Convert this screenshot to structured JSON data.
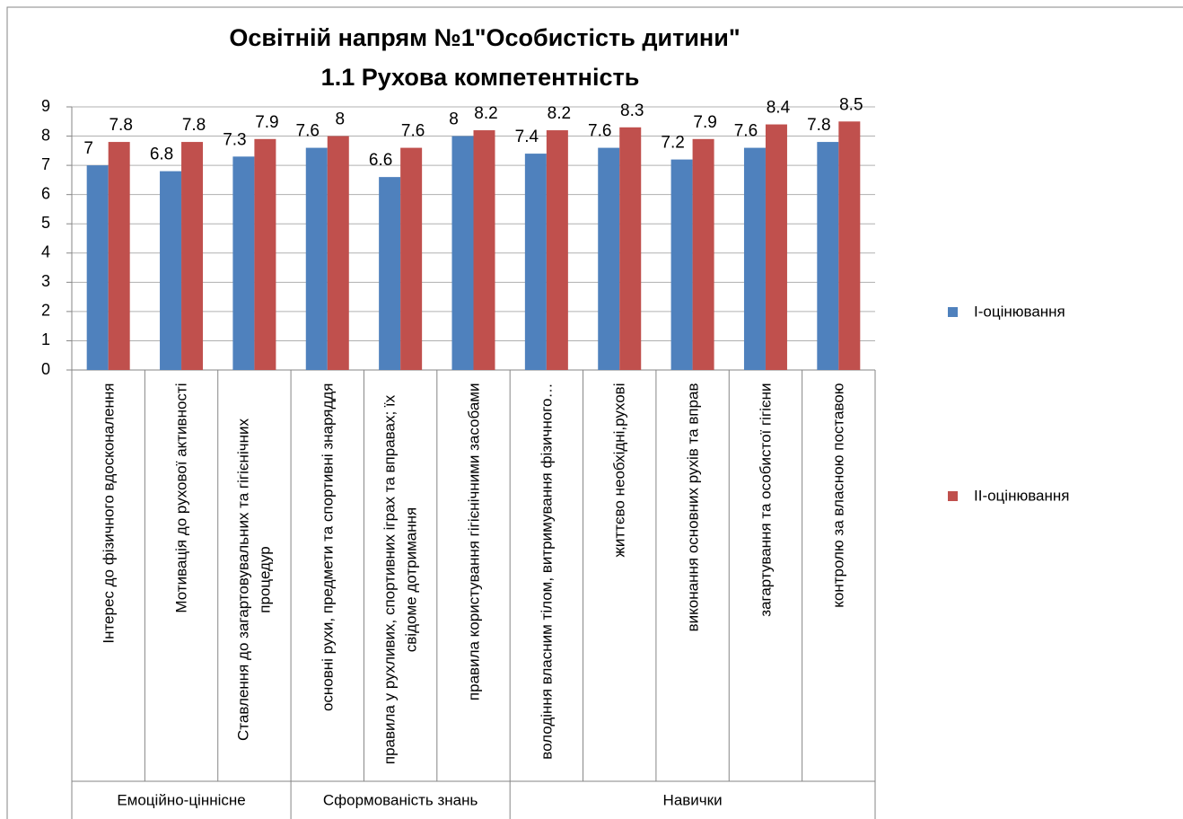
{
  "chart_data": {
    "type": "bar",
    "title": "Освітній напрям №1\"Особистість дитини\"",
    "subtitle": "1.1 Рухова компетентність",
    "categories": [
      "Інтерес до фізичного вдосконалення",
      "Мотивація до рухової активності",
      "Ставлення до загартовувальних та гігієнічних процедур",
      "основні рухи, предмети та спортивні знаряддя",
      "правила у рухливих, спортивних іграх та вправах; їх свідоме дотримання",
      "правила користування гігієнічними засобами",
      "володіння власним тілом, витримування фізичного…",
      "життєво необхідні,рухові",
      "виконання основних рухів та вправ",
      "загартування та особистої гігієни",
      "контролю за власною поставою"
    ],
    "groups": [
      {
        "name": "Емоційно-ціннісне",
        "count": 3
      },
      {
        "name": "Сформованість знань",
        "count": 3
      },
      {
        "name": "Навички",
        "count": 5
      }
    ],
    "series": [
      {
        "name": "I-оцінювання",
        "color": "#4f81bd",
        "values": [
          7,
          6.8,
          7.3,
          7.6,
          6.6,
          8,
          7.4,
          7.6,
          7.2,
          7.6,
          7.8
        ]
      },
      {
        "name": "II-оцінювання",
        "color": "#c0504d",
        "values": [
          7.8,
          7.8,
          7.9,
          8,
          7.6,
          8.2,
          8.2,
          8.3,
          7.9,
          8.4,
          8.5
        ]
      }
    ],
    "ylim": [
      0,
      9
    ],
    "yticks": [
      0,
      1,
      2,
      3,
      4,
      5,
      6,
      7,
      8,
      9
    ],
    "grid": true,
    "legend": "right"
  }
}
